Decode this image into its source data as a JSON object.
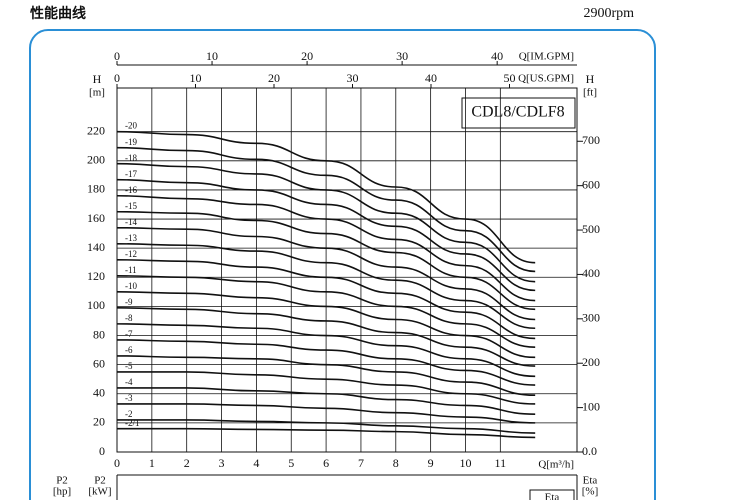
{
  "chart_data": {
    "type": "line",
    "title": "性能曲线",
    "speed": "2900rpm",
    "model": "CDL8/CDLF8",
    "x_label": "Q[m³/h]",
    "y_label": "H",
    "y_unit": "[m]",
    "y2_label": "H",
    "y2_unit": "[ft]",
    "color": "#111111",
    "grid": true,
    "x": [
      0,
      2,
      4,
      6,
      8,
      10,
      12
    ],
    "xlim": [
      0,
      13.2
    ],
    "xticks": [
      0,
      1,
      2,
      3,
      4,
      5,
      6,
      7,
      8,
      9,
      10,
      11
    ],
    "ylim": [
      0,
      250
    ],
    "yticks": [
      0,
      20,
      40,
      60,
      80,
      100,
      120,
      140,
      160,
      180,
      200,
      220
    ],
    "y2lim": [
      0,
      820
    ],
    "y2ticks": [
      {
        "value": 0,
        "label": "0.0"
      },
      100,
      200,
      300,
      400,
      500,
      600,
      700
    ],
    "top_axes": [
      {
        "label": "Q[IM.GPM]",
        "lim": [
          0,
          48.4
        ],
        "ticks": [
          0,
          10,
          20,
          30,
          40
        ]
      },
      {
        "label": "Q[US.GPM]",
        "lim": [
          0,
          58.6
        ],
        "ticks": [
          0,
          10,
          20,
          30,
          40,
          50
        ]
      }
    ],
    "lower_panel": {
      "p2_hp": "P2",
      "p2_hp_unit": "[hp]",
      "p2_kw": "P2",
      "p2_kw_unit": "[kW]",
      "eta": "Eta",
      "eta_unit": "[%]",
      "eta_box": "Eta"
    },
    "series": [
      {
        "name": "-20",
        "values": [
          220,
          218,
          212,
          200,
          182,
          160,
          130
        ]
      },
      {
        "name": "-19",
        "values": [
          209,
          207,
          201,
          190,
          173,
          152,
          124
        ]
      },
      {
        "name": "-18",
        "values": [
          198,
          196,
          191,
          180,
          164,
          144,
          117
        ]
      },
      {
        "name": "-17",
        "values": [
          187,
          185,
          180,
          170,
          155,
          136,
          111
        ]
      },
      {
        "name": "-16",
        "values": [
          176,
          174,
          170,
          160,
          146,
          128,
          104
        ]
      },
      {
        "name": "-15",
        "values": [
          165,
          164,
          159,
          150,
          137,
          120,
          98
        ]
      },
      {
        "name": "-14",
        "values": [
          154,
          153,
          148,
          140,
          127,
          112,
          91
        ]
      },
      {
        "name": "-13",
        "values": [
          143,
          142,
          138,
          130,
          118,
          104,
          85
        ]
      },
      {
        "name": "-12",
        "values": [
          132,
          131,
          127,
          120,
          109,
          96,
          78
        ]
      },
      {
        "name": "-11",
        "values": [
          121,
          120,
          117,
          110,
          100,
          88,
          72
        ]
      },
      {
        "name": "-10",
        "values": [
          110,
          109,
          106,
          100,
          91,
          80,
          65
        ]
      },
      {
        "name": "-9",
        "values": [
          99,
          98,
          95,
          90,
          82,
          72,
          59
        ]
      },
      {
        "name": "-8",
        "values": [
          88,
          87,
          85,
          80,
          73,
          64,
          52
        ]
      },
      {
        "name": "-7",
        "values": [
          77,
          76,
          74,
          70,
          64,
          56,
          46
        ]
      },
      {
        "name": "-6",
        "values": [
          66,
          65,
          64,
          60,
          55,
          48,
          39
        ]
      },
      {
        "name": "-5",
        "values": [
          55,
          55,
          53,
          50,
          46,
          40,
          33
        ]
      },
      {
        "name": "-4",
        "values": [
          44,
          44,
          42,
          40,
          36,
          32,
          26
        ]
      },
      {
        "name": "-3",
        "values": [
          33,
          33,
          32,
          30,
          27,
          24,
          20
        ]
      },
      {
        "name": "-2",
        "values": [
          22,
          22,
          21,
          20,
          18,
          16,
          13
        ]
      },
      {
        "name": "-2/1",
        "values": [
          16,
          16,
          15.5,
          15,
          14,
          12,
          10
        ]
      }
    ]
  }
}
